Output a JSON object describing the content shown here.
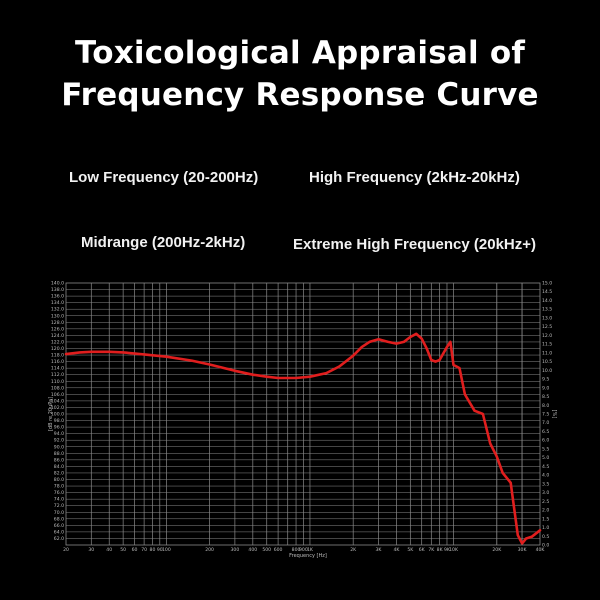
{
  "title_lines": [
    "Toxicological Appraisal of",
    "Frequency Response Curve"
  ],
  "categories": {
    "low": "Low Frequency (20-200Hz)",
    "high": "High Frequency (2kHz-20kHz)",
    "mid": "Midrange (200Hz-2kHz)",
    "extreme": "Extreme High Frequency (20kHz+)"
  },
  "colors": {
    "background": "#000000",
    "grid": "#8a8a8a",
    "curve": "#e01e1e",
    "text": "#ffffff"
  },
  "chart_data": {
    "type": "line",
    "xlabel": "Frequency [Hz]",
    "ylabel": "[dB re 20uPa]",
    "ylabel_right": "[%]",
    "x_scale": "log",
    "xlim": [
      20,
      40000
    ],
    "ylim": [
      60,
      140
    ],
    "ylim_right": [
      0,
      15
    ],
    "grid": true,
    "x_ticks": [
      {
        "v": 20,
        "t": "20"
      },
      {
        "v": 30,
        "t": "30"
      },
      {
        "v": 40,
        "t": "40"
      },
      {
        "v": 50,
        "t": "50"
      },
      {
        "v": 60,
        "t": "60"
      },
      {
        "v": 70,
        "t": "70"
      },
      {
        "v": 80,
        "t": "80"
      },
      {
        "v": 90,
        "t": "90"
      },
      {
        "v": 100,
        "t": "100"
      },
      {
        "v": 200,
        "t": "200"
      },
      {
        "v": 300,
        "t": "300"
      },
      {
        "v": 400,
        "t": "400"
      },
      {
        "v": 500,
        "t": "500"
      },
      {
        "v": 600,
        "t": "600"
      },
      {
        "v": 800,
        "t": "800"
      },
      {
        "v": 900,
        "t": "900"
      },
      {
        "v": 1000,
        "t": "1K"
      },
      {
        "v": 2000,
        "t": "2K"
      },
      {
        "v": 3000,
        "t": "3K"
      },
      {
        "v": 4000,
        "t": "4K"
      },
      {
        "v": 5000,
        "t": "5K"
      },
      {
        "v": 6000,
        "t": "6K"
      },
      {
        "v": 7000,
        "t": "7K"
      },
      {
        "v": 8000,
        "t": "8K"
      },
      {
        "v": 9000,
        "t": "9K"
      },
      {
        "v": 10000,
        "t": "10K"
      },
      {
        "v": 20000,
        "t": "20K"
      },
      {
        "v": 30000,
        "t": "30K"
      },
      {
        "v": 40000,
        "t": "40K"
      }
    ],
    "y_ticks": [
      "62.0",
      "64.0",
      "66.0",
      "68.0",
      "70.0",
      "72.0",
      "74.0",
      "76.0",
      "78.0",
      "80.0",
      "82.0",
      "84.0",
      "86.0",
      "88.0",
      "90.0",
      "92.0",
      "94.0",
      "96.0",
      "98.0",
      "100.0",
      "102.0",
      "104.0",
      "106.0",
      "108.0",
      "110.0",
      "112.0",
      "114.0",
      "116.0",
      "118.0",
      "120.0",
      "122.0",
      "124.0",
      "126.0",
      "128.0",
      "130.0",
      "132.0",
      "134.0",
      "136.0",
      "138.0",
      "140.0"
    ],
    "y_ticks_right": [
      "0.0",
      "0.5",
      "1.0",
      "1.5",
      "2.0",
      "2.5",
      "3.0",
      "3.5",
      "4.0",
      "4.5",
      "5.0",
      "5.5",
      "6.0",
      "6.5",
      "7.0",
      "7.5",
      "8.0",
      "8.5",
      "9.0",
      "9.5",
      "10.0",
      "10.5",
      "11.0",
      "11.5",
      "12.0",
      "12.5",
      "13.0",
      "13.5",
      "14.0",
      "14.5",
      "15.0"
    ],
    "series": [
      {
        "x": [
          20,
          25,
          30,
          40,
          50,
          70,
          100,
          150,
          200,
          300,
          400,
          500,
          600,
          800,
          1000,
          1300,
          1600,
          2000,
          2300,
          2600,
          3000,
          3500,
          4000,
          4500,
          5000,
          5500,
          6000,
          6500,
          7000,
          7500,
          8000,
          9000,
          9500,
          10000,
          11000,
          12000,
          14000,
          16000,
          18000,
          20000,
          22000,
          25000,
          28000,
          30000,
          32000,
          35000,
          40000
        ],
        "y": [
          118.3,
          118.8,
          119.0,
          119.0,
          118.8,
          118.2,
          117.5,
          116.3,
          115.1,
          113.2,
          112.0,
          111.4,
          111.0,
          111.0,
          111.4,
          112.5,
          114.5,
          117.8,
          120.5,
          122.0,
          122.8,
          122.0,
          121.5,
          122.0,
          123.5,
          124.5,
          123.0,
          120.0,
          116.5,
          116.0,
          116.5,
          120.5,
          122.0,
          115.0,
          114.0,
          106.0,
          101.0,
          100.0,
          91.0,
          87.0,
          82.0,
          79.0,
          63.0,
          60.5,
          62.0,
          62.5,
          64.5
        ]
      }
    ]
  }
}
